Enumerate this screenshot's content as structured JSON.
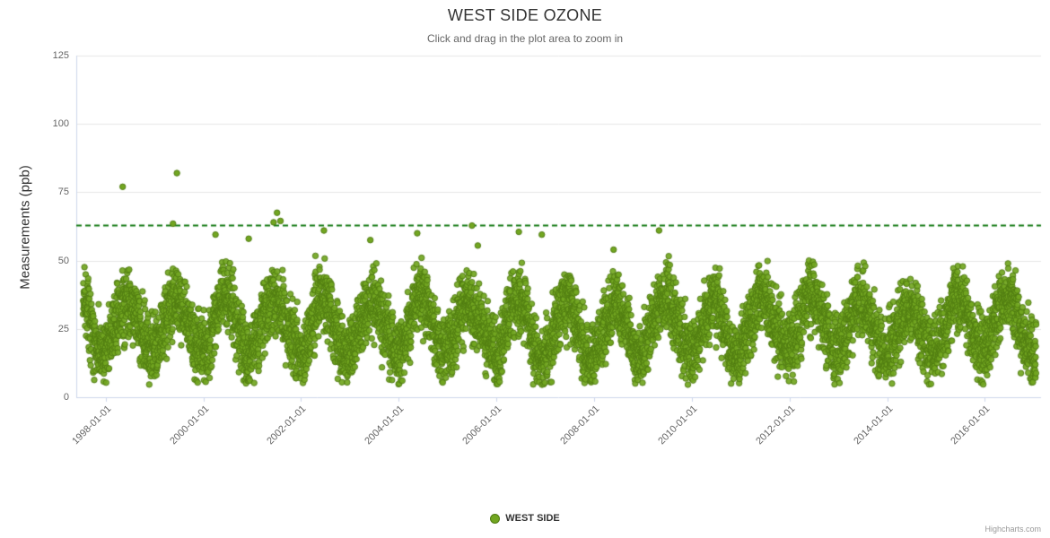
{
  "credits": "Highcharts.com",
  "colors": {
    "series_fill": "#72a621",
    "series_stroke": "#4e7a10",
    "threshold": "#147a14",
    "grid": "#e6e6e6",
    "axis": "#ccd6eb",
    "title_text": "#333333",
    "subtitle_text": "#666666",
    "tick_text": "#666666",
    "credits_text": "#999999"
  },
  "chart_data": {
    "type": "scatter",
    "title": "WEST SIDE OZONE",
    "subtitle": "Click and drag in the plot area to zoom in",
    "xlabel": "",
    "ylabel": "Measurements (ppb)",
    "ylim": [
      0,
      125
    ],
    "yticks": [
      0,
      25,
      50,
      75,
      100,
      125
    ],
    "xlim_years": [
      1997.4,
      2017.15
    ],
    "x_data_range_years": [
      1997.54,
      2017.05
    ],
    "xticks": [
      {
        "year": 1998,
        "label": "1998-01-01"
      },
      {
        "year": 2000,
        "label": "2000-01-01"
      },
      {
        "year": 2002,
        "label": "2002-01-01"
      },
      {
        "year": 2004,
        "label": "2004-01-01"
      },
      {
        "year": 2006,
        "label": "2006-01-01"
      },
      {
        "year": 2008,
        "label": "2008-01-01"
      },
      {
        "year": 2010,
        "label": "2010-01-01"
      },
      {
        "year": 2012,
        "label": "2012-01-01"
      },
      {
        "year": 2014,
        "label": "2014-01-01"
      },
      {
        "year": 2016,
        "label": "2016-01-01"
      }
    ],
    "grid": "horizontal only",
    "legend_position": "bottom center",
    "series": [
      {
        "name": "WEST SIDE",
        "type": "scatter",
        "color": "#72a621"
      }
    ],
    "threshold_line": {
      "value": 63,
      "color": "#147a14",
      "dash": [
        6,
        4
      ],
      "width": 2
    },
    "seasonal_pattern": {
      "description": "Daily ozone measurements 1997-2017; values mostly 5-52 ppb, seasonal cycle peaking mid-year (~35-50 ppb summer highs, ~5-20 ppb winter lows), dense daily sampling.",
      "points_per_year": 365,
      "seasonal_mean": 26,
      "seasonal_amplitude": 9.5,
      "peak_frac": 0.45,
      "noise_sd": 6,
      "clamp_min": 4.5,
      "clamp_max": 52.5,
      "seed": 42
    },
    "outliers": [
      [
        1998.35,
        77
      ],
      [
        1999.38,
        63.5
      ],
      [
        1999.46,
        82
      ],
      [
        2000.25,
        59.5
      ],
      [
        2000.93,
        58
      ],
      [
        2001.44,
        64
      ],
      [
        2001.51,
        67.5
      ],
      [
        2001.58,
        64.5
      ],
      [
        2002.47,
        61
      ],
      [
        2003.42,
        57.5
      ],
      [
        2004.38,
        60
      ],
      [
        2005.5,
        62.8
      ],
      [
        2005.62,
        55.5
      ],
      [
        2006.46,
        60.5
      ],
      [
        2006.93,
        59.5
      ],
      [
        2008.4,
        54
      ],
      [
        2009.33,
        61
      ]
    ]
  }
}
